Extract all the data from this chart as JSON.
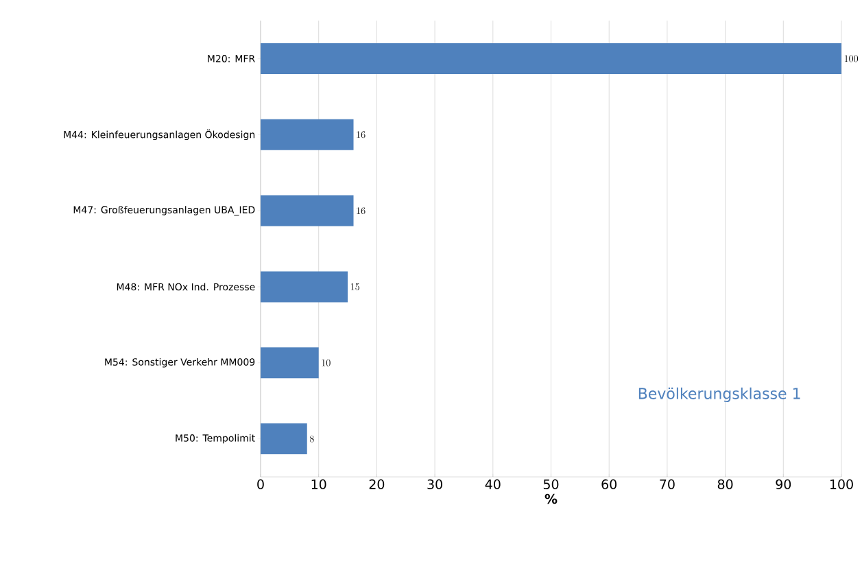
{
  "chart_data": {
    "type": "bar",
    "orientation": "horizontal",
    "xlabel": "%",
    "categories": [
      "M20: MFR",
      "M44: Kleinfeuerungsanlagen Ökodesign",
      "M47: Großfeuerungsanlagen UBA_IED",
      "M48: MFR NOx Ind. Prozesse",
      "M54: Sonstiger Verkehr MM009",
      "M50: Tempolimit"
    ],
    "values": [
      100,
      16,
      16,
      15,
      10,
      8
    ],
    "color": "#4f81bd",
    "data_labels": true,
    "xlim": [
      0,
      100
    ],
    "xticks": [
      0,
      10,
      20,
      30,
      40,
      50,
      60,
      70,
      80,
      90,
      100
    ],
    "grid": "x",
    "annotations": [
      "Bevölkerungsklasse 1"
    ]
  }
}
